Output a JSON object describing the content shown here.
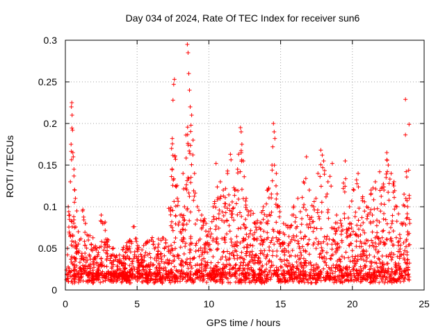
{
  "chart_data": {
    "type": "scatter",
    "title": "Day 034 of 2024, Rate Of TEC Index for receiver sun6",
    "xlabel": "GPS time / hours",
    "ylabel": "ROTI / TECUs",
    "xlim": [
      0,
      25
    ],
    "ylim": [
      0,
      0.3
    ],
    "xticks": [
      0,
      5,
      10,
      15,
      20,
      25
    ],
    "xtick_labels": [
      "0",
      "5",
      "10",
      "15",
      "20",
      "25"
    ],
    "yticks": [
      0,
      0.05,
      0.1,
      0.15,
      0.2,
      0.25,
      0.3
    ],
    "ytick_labels": [
      "0",
      "0.05",
      "0.1",
      "0.15",
      "0.2",
      "0.25",
      "0.3"
    ],
    "grid": true,
    "marker": "plus",
    "color": "#ff0000",
    "series": [
      {
        "name": "ROTI",
        "points": [
          [
            0.1,
            0.012
          ],
          [
            0.15,
            0.05
          ],
          [
            0.2,
            0.1
          ],
          [
            0.3,
            0.09
          ],
          [
            0.35,
            0.13
          ],
          [
            0.4,
            0.175
          ],
          [
            0.42,
            0.22
          ],
          [
            0.45,
            0.225
          ],
          [
            0.47,
            0.21
          ],
          [
            0.5,
            0.192
          ],
          [
            0.52,
            0.165
          ],
          [
            0.55,
            0.16
          ],
          [
            0.6,
            0.145
          ],
          [
            0.65,
            0.12
          ],
          [
            0.7,
            0.11
          ],
          [
            0.8,
            0.095
          ],
          [
            0.9,
            0.07
          ],
          [
            1.0,
            0.06
          ],
          [
            1.2,
            0.095
          ],
          [
            1.4,
            0.08
          ],
          [
            1.6,
            0.06
          ],
          [
            1.8,
            0.055
          ],
          [
            2.0,
            0.05
          ],
          [
            2.3,
            0.045
          ],
          [
            2.5,
            0.09
          ],
          [
            2.7,
            0.08
          ],
          [
            3.0,
            0.06
          ],
          [
            3.3,
            0.05
          ],
          [
            3.5,
            0.04
          ],
          [
            3.8,
            0.035
          ],
          [
            4.2,
            0.045
          ],
          [
            4.5,
            0.06
          ],
          [
            4.8,
            0.076
          ],
          [
            5.0,
            0.05
          ],
          [
            5.3,
            0.04
          ],
          [
            5.6,
            0.045
          ],
          [
            6.0,
            0.06
          ],
          [
            6.5,
            0.055
          ],
          [
            7.0,
            0.06
          ],
          [
            7.4,
            0.17
          ],
          [
            7.45,
            0.182
          ],
          [
            7.5,
            0.228
          ],
          [
            7.55,
            0.247
          ],
          [
            7.6,
            0.253
          ],
          [
            7.8,
            0.11
          ],
          [
            8.0,
            0.09
          ],
          [
            8.2,
            0.14
          ],
          [
            8.3,
            0.1
          ],
          [
            8.4,
            0.186
          ],
          [
            8.5,
            0.295
          ],
          [
            8.55,
            0.285
          ],
          [
            8.6,
            0.26
          ],
          [
            8.65,
            0.24
          ],
          [
            8.7,
            0.22
          ],
          [
            8.8,
            0.21
          ],
          [
            8.9,
            0.18
          ],
          [
            9.0,
            0.14
          ],
          [
            9.2,
            0.1
          ],
          [
            9.5,
            0.09
          ],
          [
            9.8,
            0.08
          ],
          [
            10.0,
            0.07
          ],
          [
            10.3,
            0.1
          ],
          [
            10.5,
            0.152
          ],
          [
            10.8,
            0.13
          ],
          [
            11.0,
            0.12
          ],
          [
            11.3,
            0.14
          ],
          [
            11.5,
            0.163
          ],
          [
            11.8,
            0.12
          ],
          [
            12.0,
            0.145
          ],
          [
            12.2,
            0.195
          ],
          [
            12.25,
            0.19
          ],
          [
            12.3,
            0.175
          ],
          [
            12.4,
            0.155
          ],
          [
            12.6,
            0.11
          ],
          [
            12.9,
            0.09
          ],
          [
            13.2,
            0.08
          ],
          [
            13.5,
            0.075
          ],
          [
            13.8,
            0.1
          ],
          [
            14.1,
            0.12
          ],
          [
            14.4,
            0.15
          ],
          [
            14.45,
            0.172
          ],
          [
            14.5,
            0.2
          ],
          [
            14.55,
            0.19
          ],
          [
            14.6,
            0.182
          ],
          [
            14.7,
            0.14
          ],
          [
            14.9,
            0.1
          ],
          [
            15.2,
            0.08
          ],
          [
            15.5,
            0.075
          ],
          [
            15.8,
            0.09
          ],
          [
            16.2,
            0.11
          ],
          [
            16.6,
            0.13
          ],
          [
            16.8,
            0.16
          ],
          [
            17.0,
            0.12
          ],
          [
            17.3,
            0.1
          ],
          [
            17.6,
            0.14
          ],
          [
            17.8,
            0.168
          ],
          [
            17.9,
            0.162
          ],
          [
            18.0,
            0.155
          ],
          [
            18.3,
            0.13
          ],
          [
            18.6,
            0.152
          ],
          [
            18.9,
            0.09
          ],
          [
            19.2,
            0.08
          ],
          [
            19.5,
            0.155
          ],
          [
            19.8,
            0.1
          ],
          [
            20.1,
            0.12
          ],
          [
            20.4,
            0.14
          ],
          [
            20.7,
            0.11
          ],
          [
            21.0,
            0.1
          ],
          [
            21.3,
            0.12
          ],
          [
            21.6,
            0.13
          ],
          [
            21.9,
            0.142
          ],
          [
            22.2,
            0.12
          ],
          [
            22.4,
            0.165
          ],
          [
            22.5,
            0.15
          ],
          [
            22.7,
            0.14
          ],
          [
            22.9,
            0.13
          ],
          [
            23.1,
            0.1
          ],
          [
            23.4,
            0.08
          ],
          [
            23.6,
            0.115
          ],
          [
            23.7,
            0.229
          ],
          [
            23.85,
            0.1
          ],
          [
            23.95,
            0.199
          ],
          [
            24.0,
            0.08
          ]
        ]
      }
    ]
  }
}
